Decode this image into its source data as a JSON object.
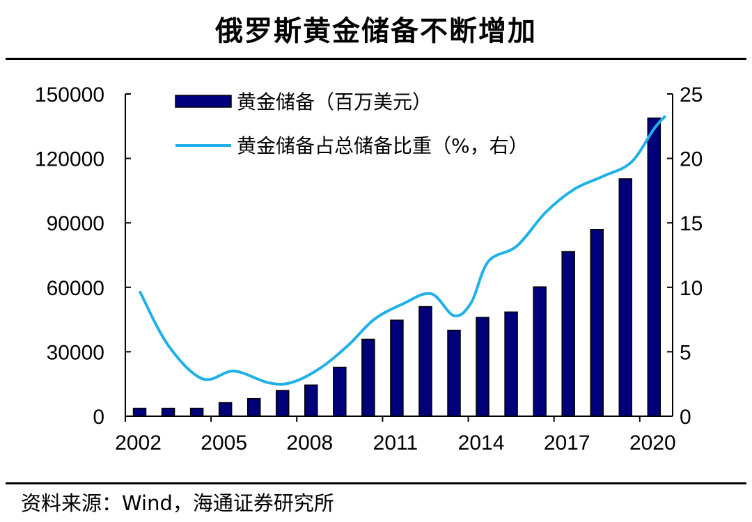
{
  "title": "俄罗斯黄金储备不断增加",
  "source": "资料来源：Wind，海通证券研究所",
  "colors": {
    "bar": "#00007a",
    "bar_edge": "#000000",
    "line": "#1fb0ea",
    "axis": "#000000"
  },
  "chart_data": {
    "type": "bar",
    "title": "俄罗斯黄金储备不断增加",
    "categories": [
      "2002",
      "2003",
      "2004",
      "2005",
      "2006",
      "2007",
      "2008",
      "2009",
      "2010",
      "2011",
      "2012",
      "2013",
      "2014",
      "2015",
      "2016",
      "2017",
      "2018",
      "2019",
      "2020"
    ],
    "x_tick_labels": [
      "2002",
      "2005",
      "2008",
      "2011",
      "2014",
      "2017",
      "2020"
    ],
    "series": [
      {
        "name": "黄金储备（百万美元）",
        "type": "bar",
        "axis": "left",
        "values": [
          3700,
          3700,
          3700,
          6300,
          8200,
          12000,
          14500,
          22800,
          35800,
          44700,
          51000,
          40000,
          46000,
          48500,
          60200,
          76600,
          86900,
          110500,
          138800
        ]
      },
      {
        "name": "黄金储备占总储备比重（%，右）",
        "type": "line",
        "axis": "right",
        "x": [
          2002.0,
          2003.0,
          2004.2,
          2005.3,
          2006.5,
          2007.3,
          2008.3,
          2009.3,
          2010.2,
          2011.2,
          2012.2,
          2013.0,
          2013.6,
          2014.2,
          2015.2,
          2016.2,
          2017.2,
          2018.2,
          2019.2,
          2020.0,
          2020.4
        ],
        "values": [
          9.7,
          5.5,
          2.9,
          3.5,
          2.6,
          2.6,
          3.7,
          5.5,
          7.5,
          8.7,
          9.5,
          7.8,
          8.8,
          12.0,
          13.2,
          15.8,
          17.6,
          18.6,
          19.7,
          22.3,
          23.3
        ]
      }
    ],
    "yleft_lim": [
      0,
      150000
    ],
    "yleft_ticks": [
      "0",
      "30000",
      "60000",
      "90000",
      "120000",
      "150000"
    ],
    "yright_lim": [
      0,
      25
    ],
    "yright_ticks": [
      "0",
      "5",
      "10",
      "15",
      "20",
      "25"
    ],
    "legend_position": "top-left",
    "grid": false
  }
}
